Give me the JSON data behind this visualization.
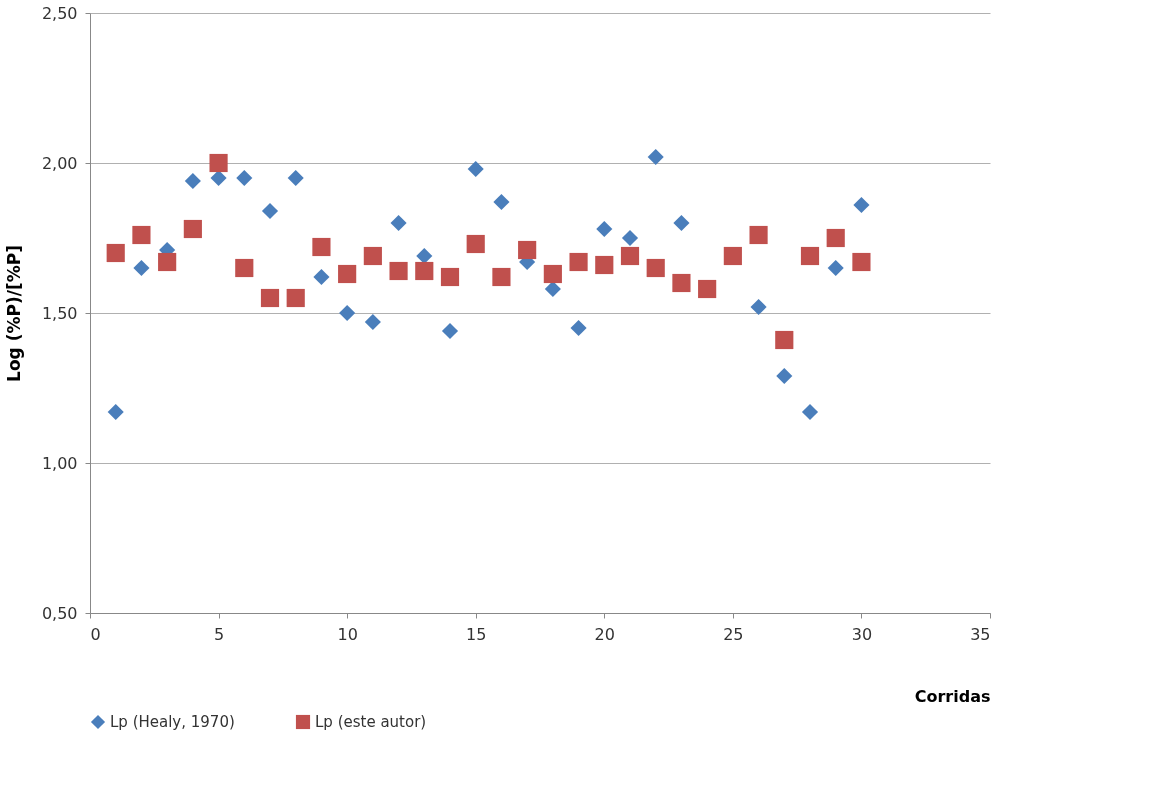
{
  "chart_data": {
    "type": "scatter",
    "xlabel": "Corridas",
    "ylabel": "Log (%P)/[%P]",
    "x": [
      1,
      2,
      3,
      4,
      5,
      6,
      7,
      8,
      9,
      10,
      11,
      12,
      13,
      14,
      15,
      16,
      17,
      18,
      19,
      20,
      21,
      22,
      23,
      24,
      25,
      26,
      27,
      28,
      29,
      30
    ],
    "series": [
      {
        "name": "Lp (Healy, 1970)",
        "color": "#4a7ebb",
        "marker": "diamond",
        "values": [
          1.17,
          1.65,
          1.71,
          1.94,
          1.95,
          1.95,
          1.84,
          1.95,
          1.62,
          1.5,
          1.47,
          1.8,
          1.69,
          1.44,
          1.98,
          1.87,
          1.67,
          1.58,
          1.45,
          1.78,
          1.75,
          2.02,
          1.8,
          null,
          null,
          1.52,
          1.29,
          1.17,
          1.65,
          1.86
        ]
      },
      {
        "name": "Lp (este autor)",
        "color": "#c0504d",
        "marker": "square",
        "values": [
          1.7,
          1.76,
          1.67,
          1.78,
          2.0,
          1.65,
          1.55,
          1.55,
          1.72,
          1.63,
          1.69,
          1.64,
          1.64,
          1.62,
          1.73,
          1.62,
          1.71,
          1.63,
          1.67,
          1.66,
          1.69,
          1.65,
          1.6,
          1.58,
          1.69,
          1.76,
          1.41,
          1.69,
          1.75,
          1.67
        ]
      }
    ],
    "xlim": [
      0,
      35
    ],
    "xticks": [
      0,
      5,
      10,
      15,
      20,
      25,
      30,
      35
    ],
    "ylim": [
      0.5,
      2.5
    ],
    "yticks": [
      {
        "value": 0.5,
        "label": "0,50"
      },
      {
        "value": 1.0,
        "label": "1,00"
      },
      {
        "value": 1.5,
        "label": "1,50"
      },
      {
        "value": 2.0,
        "label": "2,00"
      },
      {
        "value": 2.5,
        "label": "2,50"
      }
    ],
    "grid": "y",
    "legend": "bottom"
  }
}
